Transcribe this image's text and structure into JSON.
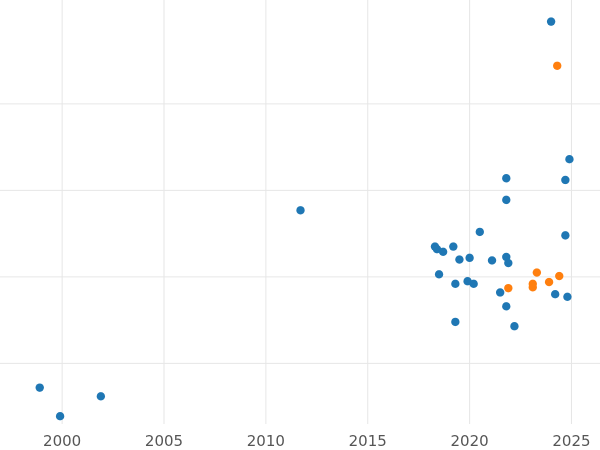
{
  "chart_data": {
    "type": "scatter",
    "title": "",
    "xlabel": "",
    "ylabel": "",
    "xlim": [
      1996.95,
      2026.4
    ],
    "ylim": [
      0.3,
      5.2
    ],
    "grid": true,
    "legend": "none",
    "x_ticks": [
      "2000",
      "2005",
      "2010",
      "2015",
      "2020",
      "2025"
    ],
    "x_tick_values": [
      2000,
      2005,
      2010,
      2015,
      2020,
      2025
    ],
    "y_gridlines": [
      1,
      2,
      3,
      4
    ],
    "series": [
      {
        "color": "#1f77b4",
        "points": [
          [
            1998.9,
            0.72
          ],
          [
            1999.9,
            0.39
          ],
          [
            2001.9,
            0.62
          ],
          [
            2011.7,
            2.77
          ],
          [
            2018.3,
            2.35
          ],
          [
            2018.4,
            2.32
          ],
          [
            2018.5,
            2.03
          ],
          [
            2018.7,
            2.29
          ],
          [
            2019.2,
            2.35
          ],
          [
            2019.3,
            1.92
          ],
          [
            2019.3,
            1.48
          ],
          [
            2019.5,
            2.2
          ],
          [
            2019.9,
            1.95
          ],
          [
            2020.0,
            2.22
          ],
          [
            2020.2,
            1.92
          ],
          [
            2020.5,
            2.52
          ],
          [
            2021.1,
            2.19
          ],
          [
            2021.5,
            1.82
          ],
          [
            2021.8,
            3.14
          ],
          [
            2021.8,
            2.89
          ],
          [
            2021.8,
            2.23
          ],
          [
            2021.9,
            2.16
          ],
          [
            2021.8,
            1.66
          ],
          [
            2022.2,
            1.43
          ],
          [
            2024.0,
            4.95
          ],
          [
            2024.2,
            1.8
          ],
          [
            2024.7,
            3.12
          ],
          [
            2024.7,
            2.48
          ],
          [
            2024.8,
            1.77
          ],
          [
            2024.9,
            3.36
          ]
        ]
      },
      {
        "color": "#ff7f0e",
        "points": [
          [
            2021.9,
            1.87
          ],
          [
            2023.1,
            1.88
          ],
          [
            2023.1,
            1.92
          ],
          [
            2023.3,
            2.05
          ],
          [
            2023.9,
            1.94
          ],
          [
            2024.3,
            4.44
          ],
          [
            2024.4,
            2.01
          ]
        ]
      }
    ]
  }
}
